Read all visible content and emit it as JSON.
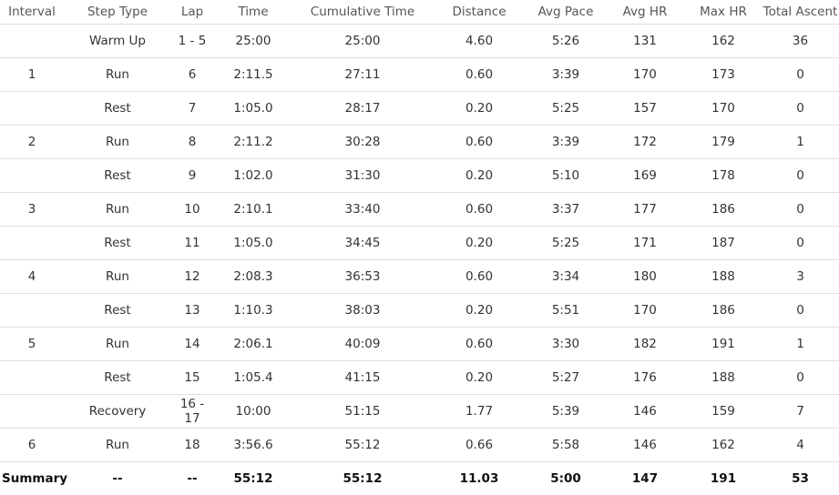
{
  "table": {
    "columns": [
      "Interval",
      "Step Type",
      "Lap",
      "Time",
      "Cumulative Time",
      "Distance",
      "Avg Pace",
      "Avg HR",
      "Max HR",
      "Total Ascent"
    ],
    "rows": [
      [
        "",
        "Warm Up",
        "1 - 5",
        "25:00",
        "25:00",
        "4.60",
        "5:26",
        "131",
        "162",
        "36"
      ],
      [
        "1",
        "Run",
        "6",
        "2:11.5",
        "27:11",
        "0.60",
        "3:39",
        "170",
        "173",
        "0"
      ],
      [
        "",
        "Rest",
        "7",
        "1:05.0",
        "28:17",
        "0.20",
        "5:25",
        "157",
        "170",
        "0"
      ],
      [
        "2",
        "Run",
        "8",
        "2:11.2",
        "30:28",
        "0.60",
        "3:39",
        "172",
        "179",
        "1"
      ],
      [
        "",
        "Rest",
        "9",
        "1:02.0",
        "31:30",
        "0.20",
        "5:10",
        "169",
        "178",
        "0"
      ],
      [
        "3",
        "Run",
        "10",
        "2:10.1",
        "33:40",
        "0.60",
        "3:37",
        "177",
        "186",
        "0"
      ],
      [
        "",
        "Rest",
        "11",
        "1:05.0",
        "34:45",
        "0.20",
        "5:25",
        "171",
        "187",
        "0"
      ],
      [
        "4",
        "Run",
        "12",
        "2:08.3",
        "36:53",
        "0.60",
        "3:34",
        "180",
        "188",
        "3"
      ],
      [
        "",
        "Rest",
        "13",
        "1:10.3",
        "38:03",
        "0.20",
        "5:51",
        "170",
        "186",
        "0"
      ],
      [
        "5",
        "Run",
        "14",
        "2:06.1",
        "40:09",
        "0.60",
        "3:30",
        "182",
        "191",
        "1"
      ],
      [
        "",
        "Rest",
        "15",
        "1:05.4",
        "41:15",
        "0.20",
        "5:27",
        "176",
        "188",
        "0"
      ],
      [
        "",
        "Recovery",
        "16 - 17",
        "10:00",
        "51:15",
        "1.77",
        "5:39",
        "146",
        "159",
        "7"
      ],
      [
        "6",
        "Run",
        "18",
        "3:56.6",
        "55:12",
        "0.66",
        "5:58",
        "146",
        "162",
        "4"
      ]
    ],
    "summary": [
      "Summary",
      "--",
      "--",
      "55:12",
      "55:12",
      "11.03",
      "5:00",
      "147",
      "191",
      "53"
    ]
  }
}
